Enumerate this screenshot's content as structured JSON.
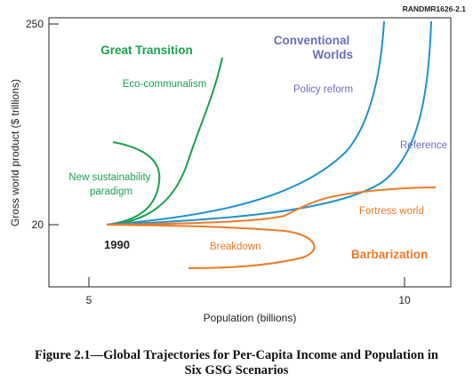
{
  "report_id": "RANDMR1626-2.1",
  "caption_line1": "Figure 2.1—Global Trajectories for Per-Capita Income and Population in",
  "caption_line2": "Six GSG Scenarios",
  "chart_data": {
    "type": "line",
    "title": "",
    "xlabel": "Population (billions)",
    "ylabel": "Gross world product ($ trillions)",
    "x_ticks": [
      "5",
      "10"
    ],
    "y_ticks": [
      "20",
      "250"
    ],
    "grid": false,
    "origin_label": "1990",
    "origin": [
      5.3,
      20
    ],
    "groups": [
      {
        "name": "Great Transition",
        "color": "#1aa050",
        "members": [
          "Eco-communalism",
          "New sustainability paradigm"
        ]
      },
      {
        "name": "Conventional Worlds",
        "color": "#6a6cb8",
        "members": [
          "Policy reform",
          "Reference"
        ]
      },
      {
        "name": "Barbarization",
        "color": "#ee7a25",
        "members": [
          "Breakdown",
          "Fortress world"
        ]
      }
    ],
    "series": [
      {
        "name": "Eco-communalism",
        "group": "Great Transition",
        "color": "#1aa050",
        "points": [
          [
            5.3,
            20
          ],
          [
            5.7,
            22
          ],
          [
            6.2,
            35
          ],
          [
            6.6,
            70
          ],
          [
            6.9,
            140
          ],
          [
            7.1,
            250
          ]
        ]
      },
      {
        "name": "New sustainability paradigm",
        "group": "Great Transition",
        "color": "#1aa050",
        "points": [
          [
            5.3,
            20
          ],
          [
            5.8,
            24
          ],
          [
            6.1,
            45
          ],
          [
            6.1,
            80
          ],
          [
            5.6,
            110
          ],
          [
            5.3,
            120
          ]
        ]
      },
      {
        "name": "Policy reform",
        "group": "Conventional Worlds",
        "color": "#1e90d0",
        "points": [
          [
            5.3,
            20
          ],
          [
            6.5,
            28
          ],
          [
            7.5,
            45
          ],
          [
            8.3,
            75
          ],
          [
            9.0,
            140
          ],
          [
            9.5,
            290
          ]
        ]
      },
      {
        "name": "Reference",
        "group": "Conventional Worlds",
        "color": "#1e90d0",
        "points": [
          [
            5.3,
            20
          ],
          [
            6.8,
            26
          ],
          [
            8.0,
            40
          ],
          [
            9.0,
            70
          ],
          [
            9.9,
            140
          ],
          [
            10.4,
            290
          ]
        ]
      },
      {
        "name": "Fortress world",
        "group": "Barbarization",
        "color": "#ee7a25",
        "points": [
          [
            5.3,
            20
          ],
          [
            7.0,
            21
          ],
          [
            8.1,
            23
          ],
          [
            8.6,
            30
          ],
          [
            9.6,
            36
          ],
          [
            10.5,
            38
          ]
        ]
      },
      {
        "name": "Breakdown",
        "group": "Barbarization",
        "color": "#ee7a25",
        "points": [
          [
            5.3,
            20
          ],
          [
            7.0,
            19
          ],
          [
            8.0,
            17
          ],
          [
            8.6,
            14
          ],
          [
            8.0,
            12
          ],
          [
            6.5,
            11
          ],
          [
            6.2,
            11
          ]
        ]
      }
    ]
  }
}
